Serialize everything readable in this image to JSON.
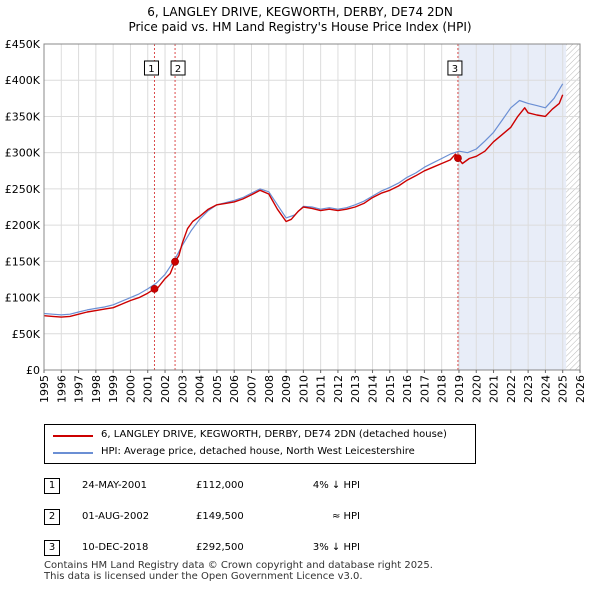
{
  "title_line1": "6, LANGLEY DRIVE, KEGWORTH, DERBY, DE74 2DN",
  "title_line2": "Price paid vs. HM Land Registry's House Price Index (HPI)",
  "legend": {
    "property_label": "6, LANGLEY DRIVE, KEGWORTH, DERBY, DE74 2DN (detached house)",
    "hpi_label": "HPI: Average price, detached house, North West Leicestershire"
  },
  "colors": {
    "property": "#cc0000",
    "hpi": "#6b8fd4",
    "shade": "#e8edf8",
    "grid": "#dcdcdc"
  },
  "sales": [
    {
      "num": "1",
      "date": "24-MAY-2001",
      "price": "£112,000",
      "hpi_rel": "4% ↓ HPI"
    },
    {
      "num": "2",
      "date": "01-AUG-2002",
      "price": "£149,500",
      "hpi_rel": "≈ HPI"
    },
    {
      "num": "3",
      "date": "10-DEC-2018",
      "price": "£292,500",
      "hpi_rel": "3% ↓ HPI"
    }
  ],
  "footer": {
    "line1": "Contains HM Land Registry data © Crown copyright and database right 2025.",
    "line2": "This data is licensed under the Open Government Licence v3.0."
  },
  "chart_data": {
    "type": "line",
    "title": "6, LANGLEY DRIVE, KEGWORTH, DERBY, DE74 2DN",
    "subtitle": "Price paid vs. HM Land Registry's House Price Index (HPI)",
    "xlim": [
      1995,
      2026
    ],
    "ylim": [
      0,
      450000
    ],
    "x_ticks": [
      1995,
      1996,
      1997,
      1998,
      1999,
      2000,
      2001,
      2002,
      2003,
      2004,
      2005,
      2006,
      2007,
      2008,
      2009,
      2010,
      2011,
      2012,
      2013,
      2014,
      2015,
      2016,
      2017,
      2018,
      2019,
      2020,
      2021,
      2022,
      2023,
      2024,
      2025,
      2026
    ],
    "y_ticks": [
      0,
      50000,
      100000,
      150000,
      200000,
      250000,
      300000,
      350000,
      400000,
      450000
    ],
    "y_tick_labels": [
      "£0",
      "£50K",
      "£100K",
      "£150K",
      "£200K",
      "£250K",
      "£300K",
      "£350K",
      "£400K",
      "£450K"
    ],
    "grid": true,
    "shaded_region": [
      2018.94,
      2025.2
    ],
    "forecast_hatch_from": 2025.2,
    "series": [
      {
        "name": "6, LANGLEY DRIVE, KEGWORTH, DERBY, DE74 2DN (detached house)",
        "x": [
          1995,
          1995.5,
          1996,
          1996.5,
          1997,
          1997.5,
          1998,
          1998.5,
          1999,
          1999.5,
          2000,
          2000.5,
          2001,
          2001.39,
          2001.6,
          2002,
          2002.3,
          2002.58,
          2002.8,
          2003,
          2003.3,
          2003.6,
          2004,
          2004.5,
          2005,
          2005.5,
          2006,
          2006.5,
          2007,
          2007.5,
          2008,
          2008.5,
          2009,
          2009.3,
          2009.7,
          2010,
          2010.5,
          2011,
          2011.5,
          2012,
          2012.5,
          2013,
          2013.5,
          2014,
          2014.5,
          2015,
          2015.5,
          2016,
          2016.5,
          2017,
          2017.5,
          2018,
          2018.5,
          2018.8,
          2018.94,
          2019.2,
          2019.6,
          2020,
          2020.5,
          2021,
          2021.5,
          2022,
          2022.4,
          2022.8,
          2023,
          2023.5,
          2024,
          2024.4,
          2024.8,
          2025.0
        ],
        "y": [
          75000,
          74000,
          73000,
          74000,
          77000,
          80000,
          82000,
          84000,
          86000,
          91000,
          96000,
          100000,
          106000,
          112000,
          114000,
          126000,
          133000,
          149500,
          158000,
          175000,
          195000,
          205000,
          212000,
          222000,
          228000,
          230000,
          232000,
          236000,
          242000,
          248000,
          243000,
          222000,
          205000,
          208000,
          219000,
          225000,
          223000,
          220000,
          222000,
          220000,
          222000,
          225000,
          230000,
          238000,
          244000,
          248000,
          254000,
          262000,
          268000,
          275000,
          280000,
          285000,
          290000,
          298000,
          292500,
          285000,
          292000,
          295000,
          302000,
          315000,
          325000,
          335000,
          350000,
          362000,
          355000,
          352000,
          350000,
          360000,
          368000,
          380000
        ]
      },
      {
        "name": "HPI: Average price, detached house, North West Leicestershire",
        "x": [
          1995,
          1995.5,
          1996,
          1996.5,
          1997,
          1997.5,
          1998,
          1998.5,
          1999,
          1999.5,
          2000,
          2000.5,
          2001,
          2001.5,
          2002,
          2002.5,
          2003,
          2003.5,
          2004,
          2004.5,
          2005,
          2005.5,
          2006,
          2006.5,
          2007,
          2007.5,
          2008,
          2008.5,
          2009,
          2009.5,
          2010,
          2010.5,
          2011,
          2011.5,
          2012,
          2012.5,
          2013,
          2013.5,
          2014,
          2014.5,
          2015,
          2015.5,
          2016,
          2016.5,
          2017,
          2017.5,
          2018,
          2018.5,
          2019,
          2019.5,
          2020,
          2020.5,
          2021,
          2021.5,
          2022,
          2022.5,
          2023,
          2023.5,
          2024,
          2024.5,
          2025.0
        ],
        "y": [
          78000,
          77000,
          76000,
          77000,
          80000,
          83000,
          85000,
          87000,
          90000,
          95000,
          100000,
          105000,
          112000,
          120000,
          132000,
          150000,
          172000,
          192000,
          208000,
          220000,
          228000,
          231000,
          234000,
          238000,
          244000,
          250000,
          246000,
          228000,
          210000,
          214000,
          226000,
          225000,
          222000,
          224000,
          222000,
          224000,
          228000,
          233000,
          240000,
          247000,
          252000,
          258000,
          266000,
          272000,
          280000,
          286000,
          292000,
          298000,
          302000,
          300000,
          305000,
          316000,
          328000,
          345000,
          362000,
          372000,
          368000,
          365000,
          362000,
          375000,
          395000
        ]
      }
    ],
    "sale_points": [
      {
        "label": "1",
        "x": 2001.39,
        "y": 112000
      },
      {
        "label": "2",
        "x": 2002.58,
        "y": 149500
      },
      {
        "label": "3",
        "x": 2018.94,
        "y": 292500
      }
    ]
  }
}
